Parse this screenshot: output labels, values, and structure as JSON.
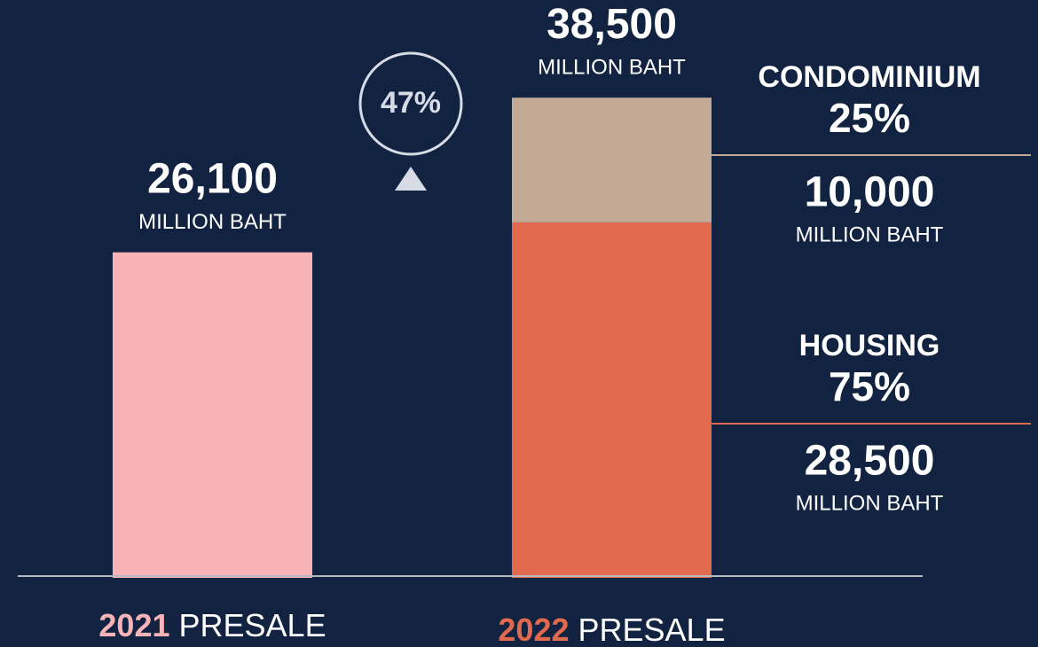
{
  "chart_data": {
    "type": "bar",
    "categories": [
      "2021",
      "2022"
    ],
    "category_suffix": "PRESALE",
    "category_colors": [
      "#f7b3b8",
      "#e0694e"
    ],
    "unit": "MILLION BAHT",
    "change_label": "47%",
    "totals": {
      "values": [
        26100,
        38500
      ],
      "value_labels": [
        "26,100",
        "38,500"
      ],
      "color": "#f7b3b8"
    },
    "series": [
      {
        "name": "HOUSING",
        "color": "#e0694e",
        "values": [
          null,
          28500
        ],
        "value_labels": [
          null,
          "28,500"
        ],
        "share_label": "75%"
      },
      {
        "name": "CONDOMINIUM",
        "color": "#c1a994",
        "values": [
          null,
          10000
        ],
        "value_labels": [
          null,
          "10,000"
        ],
        "share_label": "25%"
      }
    ],
    "ylim": [
      0,
      41000
    ]
  }
}
